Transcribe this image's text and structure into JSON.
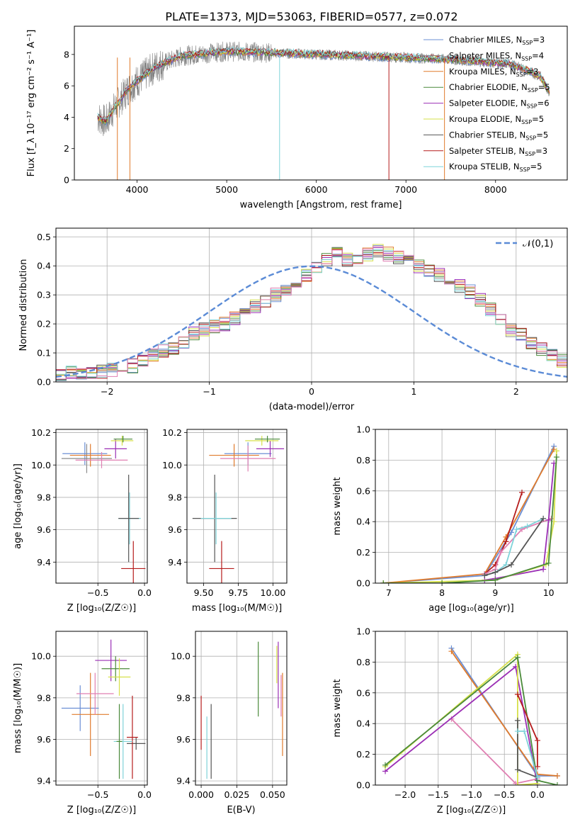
{
  "figure": {
    "title": "PLATE=1373, MJD=53063, FIBERID=0577, z=0.072"
  },
  "colors": {
    "models": [
      "#6b8fd4",
      "#8c8c8c",
      "#e07b2c",
      "#4a8a3a",
      "#9b2fb5",
      "#d6e04a",
      "#555555",
      "#b51c1c",
      "#7fd3d9"
    ],
    "extra_pink": "#e07fb2",
    "extra_green": "#6fcf3f",
    "normal_curve": "#5b8bd6"
  },
  "chart_data": [
    {
      "id": "spectrum",
      "type": "line",
      "xlabel": "wavelength [Angstrom, rest frame]",
      "ylabel": "Flux [f_λ 10⁻¹⁷ erg cm⁻² s⁻¹ A⁻¹]",
      "xlim": [
        3300,
        8800
      ],
      "ylim": [
        0,
        9.8
      ],
      "xticks": [
        4000,
        5000,
        6000,
        7000,
        8000
      ],
      "yticks": [
        0,
        2,
        4,
        6,
        8
      ],
      "grid": false,
      "legend_position": "right",
      "legend": [
        "Chabrier MILES, N_SSP=3",
        "Salpeter MILES, N_SSP=4",
        "Kroupa MILES, N_SSP=3",
        "Chabrier ELODIE, N_SSP=5",
        "Salpeter ELODIE, N_SSP=6",
        "Kroupa ELODIE, N_SSP=5",
        "Chabrier STELIB, N_SSP=5",
        "Salpeter STELIB, N_SSP=3",
        "Kroupa STELIB, N_SSP=5"
      ],
      "legend_display": [
        {
          "pre": "Chabrier MILES, N",
          "sub": "SSP",
          "post": "=3"
        },
        {
          "pre": "Salpeter MILES, N",
          "sub": "SSP",
          "post": "=4"
        },
        {
          "pre": "Kroupa MILES, N",
          "sub": "SSP",
          "post": "=3"
        },
        {
          "pre": "Chabrier ELODIE, N",
          "sub": "SSP",
          "post": "=5"
        },
        {
          "pre": "Salpeter ELODIE, N",
          "sub": "SSP",
          "post": "=6"
        },
        {
          "pre": "Kroupa ELODIE, N",
          "sub": "SSP",
          "post": "=5"
        },
        {
          "pre": "Chabrier STELIB, N",
          "sub": "SSP",
          "post": "=5"
        },
        {
          "pre": "Salpeter STELIB, N",
          "sub": "SSP",
          "post": "=3"
        },
        {
          "pre": "Kroupa STELIB, N",
          "sub": "SSP",
          "post": "=5"
        }
      ],
      "continuum": {
        "wavelength": [
          3560,
          3650,
          3750,
          3900,
          4000,
          4200,
          4500,
          5000,
          5500,
          6000,
          6500,
          7000,
          7400,
          7700,
          7900,
          8150,
          8300,
          8500,
          8600
        ],
        "flux": [
          4.0,
          3.7,
          4.6,
          5.8,
          6.3,
          7.2,
          7.9,
          8.2,
          8.1,
          8.0,
          7.9,
          7.8,
          7.7,
          7.6,
          7.5,
          7.4,
          7.1,
          6.6,
          5.6
        ]
      }
    },
    {
      "id": "residuals",
      "type": "histogram",
      "xlabel": "(data-model)/error",
      "ylabel": "Normed distribution",
      "xlim": [
        -2.5,
        2.5
      ],
      "ylim": [
        0,
        0.53
      ],
      "xticks": [
        -2,
        -1,
        0,
        1,
        2
      ],
      "yticks": [
        0.0,
        0.1,
        0.2,
        0.3,
        0.4,
        0.5
      ],
      "grid": true,
      "legend": [
        "𝒩(0,1)"
      ],
      "bins": {
        "start": -2.5,
        "width": 0.1
      },
      "reference_hist": [
        0.02,
        0.03,
        0.03,
        0.03,
        0.035,
        0.04,
        0.05,
        0.055,
        0.07,
        0.09,
        0.11,
        0.12,
        0.14,
        0.17,
        0.18,
        0.19,
        0.2,
        0.22,
        0.24,
        0.26,
        0.28,
        0.3,
        0.32,
        0.34,
        0.37,
        0.39,
        0.42,
        0.44,
        0.42,
        0.43,
        0.44,
        0.45,
        0.44,
        0.43,
        0.42,
        0.4,
        0.38,
        0.37,
        0.35,
        0.33,
        0.31,
        0.28,
        0.25,
        0.22,
        0.18,
        0.16,
        0.13,
        0.11,
        0.09,
        0.07
      ]
    },
    {
      "id": "age_vs_Z",
      "type": "errorbar",
      "xlabel": "Z [log₁₀(Z/Z☉)]",
      "ylabel": "age  [log₁₀(age/yr)]",
      "xlim": [
        -0.95,
        0.03
      ],
      "ylim": [
        9.27,
        10.22
      ],
      "xticks": [
        -0.5,
        0.0
      ],
      "yticks": [
        9.4,
        9.6,
        9.8,
        10.0,
        10.2
      ],
      "grid": true,
      "points": [
        {
          "x": -0.64,
          "y": 10.07,
          "xerr": 0.24,
          "yerr": 0.07,
          "c": 0
        },
        {
          "x": -0.62,
          "y": 10.04,
          "xerr": 0.27,
          "yerr": 0.09,
          "c": 1
        },
        {
          "x": -0.58,
          "y": 10.06,
          "xerr": 0.22,
          "yerr": 0.07,
          "c": 2
        },
        {
          "x": -0.31,
          "y": 10.1,
          "xerr": 0.12,
          "yerr": 0.06,
          "c": 4
        },
        {
          "x": -0.24,
          "y": 10.15,
          "xerr": 0.12,
          "yerr": 0.03,
          "c": 5
        },
        {
          "x": -0.23,
          "y": 10.16,
          "xerr": 0.1,
          "yerr": 0.02,
          "c": 3
        },
        {
          "x": -0.46,
          "y": 10.03,
          "xerr": 0.28,
          "yerr": 0.05,
          "c": 9
        },
        {
          "x": -0.16,
          "y": 9.67,
          "xerr": 0.12,
          "yerr": 0.16,
          "c": 8
        },
        {
          "x": -0.17,
          "y": 9.67,
          "xerr": 0.11,
          "yerr": 0.27,
          "c": 6
        },
        {
          "x": -0.12,
          "y": 9.36,
          "xerr": 0.13,
          "yerr": 0.17,
          "c": 7
        }
      ]
    },
    {
      "id": "age_vs_mass",
      "type": "errorbar",
      "xlabel": "mass [log₁₀(M/M☉)]",
      "ylabel": "",
      "xlim": [
        9.38,
        10.1
      ],
      "ylim": [
        9.27,
        10.22
      ],
      "xticks": [
        9.5,
        9.75,
        10.0
      ],
      "yticks": [
        9.4,
        9.6,
        9.8,
        10.0,
        10.2
      ],
      "grid": true,
      "points": [
        {
          "x": 9.82,
          "y": 10.07,
          "xerr": 0.17,
          "yerr": 0.07,
          "c": 0
        },
        {
          "x": 9.72,
          "y": 10.06,
          "xerr": 0.18,
          "yerr": 0.07,
          "c": 2
        },
        {
          "x": 9.82,
          "y": 10.04,
          "xerr": 0.2,
          "yerr": 0.08,
          "c": 9
        },
        {
          "x": 9.98,
          "y": 10.1,
          "xerr": 0.1,
          "yerr": 0.05,
          "c": 4
        },
        {
          "x": 9.92,
          "y": 10.15,
          "xerr": 0.12,
          "yerr": 0.03,
          "c": 5
        },
        {
          "x": 9.96,
          "y": 10.16,
          "xerr": 0.09,
          "yerr": 0.02,
          "c": 3
        },
        {
          "x": 9.58,
          "y": 9.67,
          "xerr": 0.16,
          "yerr": 0.27,
          "c": 6
        },
        {
          "x": 9.59,
          "y": 9.67,
          "xerr": 0.11,
          "yerr": 0.16,
          "c": 8
        },
        {
          "x": 9.63,
          "y": 9.36,
          "xerr": 0.09,
          "yerr": 0.17,
          "c": 7
        }
      ]
    },
    {
      "id": "weight_vs_age",
      "type": "line",
      "xlabel": "age  [log₁₀(age/yr)]",
      "ylabel": "mass weight",
      "xlim": [
        6.75,
        10.35
      ],
      "ylim": [
        0,
        1.0
      ],
      "xticks": [
        7,
        8,
        9,
        10
      ],
      "yticks": [
        0.0,
        0.2,
        0.4,
        0.6,
        0.8,
        1.0
      ],
      "grid": true,
      "series": [
        {
          "c": 0,
          "x": [
            6.9,
            8.8,
            9.3,
            10.1
          ],
          "y": [
            0.0,
            0.05,
            0.33,
            0.89
          ]
        },
        {
          "c": 2,
          "x": [
            6.9,
            8.8,
            9.2,
            10.1
          ],
          "y": [
            0.0,
            0.06,
            0.3,
            0.87
          ]
        },
        {
          "c": 7,
          "x": [
            8.8,
            9.0,
            9.2,
            9.5
          ],
          "y": [
            0.06,
            0.12,
            0.27,
            0.59
          ]
        },
        {
          "c": 9,
          "x": [
            8.8,
            9.0,
            9.1,
            9.5,
            10.05
          ],
          "y": [
            0.06,
            0.09,
            0.2,
            0.35,
            0.42
          ]
        },
        {
          "c": 8,
          "x": [
            8.8,
            9.0,
            9.2,
            9.4,
            9.6,
            9.9
          ],
          "y": [
            0.05,
            0.07,
            0.12,
            0.35,
            0.37,
            0.42
          ]
        },
        {
          "c": 4,
          "x": [
            8.8,
            9.0,
            9.9,
            10.0,
            10.1
          ],
          "y": [
            0.02,
            0.03,
            0.09,
            0.41,
            0.78
          ]
        },
        {
          "c": 5,
          "x": [
            6.9,
            8.0,
            9.0,
            9.95,
            10.1,
            10.15
          ],
          "y": [
            0.0,
            0.01,
            0.02,
            0.12,
            0.4,
            0.86
          ]
        },
        {
          "c": 3,
          "x": [
            6.9,
            8.0,
            9.0,
            10.0,
            10.15
          ],
          "y": [
            0.0,
            0.0,
            0.02,
            0.13,
            0.82
          ]
        },
        {
          "c": 6,
          "x": [
            8.8,
            9.0,
            9.3,
            9.9
          ],
          "y": [
            0.05,
            0.07,
            0.12,
            0.42
          ]
        }
      ]
    },
    {
      "id": "mass_vs_Z",
      "type": "errorbar",
      "xlabel": "Z [log₁₀(Z/Z☉)]",
      "ylabel": "mass [log₁₀(M/M☉)]",
      "xlim": [
        -0.95,
        0.03
      ],
      "ylim": [
        9.38,
        10.12
      ],
      "xticks": [
        -0.5,
        0.0
      ],
      "yticks": [
        9.4,
        9.6,
        9.8,
        10.0
      ],
      "grid": true,
      "points": [
        {
          "x": -0.69,
          "y": 9.75,
          "xerr": 0.2,
          "yerr": 0.11,
          "c": 0
        },
        {
          "x": -0.58,
          "y": 9.72,
          "xerr": 0.2,
          "yerr": 0.2,
          "c": 2
        },
        {
          "x": -0.53,
          "y": 9.82,
          "xerr": 0.2,
          "yerr": 0.1,
          "c": 9
        },
        {
          "x": -0.36,
          "y": 9.98,
          "xerr": 0.17,
          "yerr": 0.1,
          "c": 4
        },
        {
          "x": -0.31,
          "y": 9.94,
          "xerr": 0.15,
          "yerr": 0.06,
          "c": 3
        },
        {
          "x": -0.27,
          "y": 9.9,
          "xerr": 0.12,
          "yerr": 0.09,
          "c": 5
        },
        {
          "x": -0.09,
          "y": 9.58,
          "xerr": 0.1,
          "yerr": 0.03,
          "c": 6
        },
        {
          "x": -0.13,
          "y": 9.61,
          "xerr": 0.06,
          "yerr": 0.2,
          "c": 7
        },
        {
          "x": -0.23,
          "y": 9.59,
          "xerr": 0.1,
          "yerr": 0.18,
          "c": 8
        },
        {
          "x": -0.27,
          "y": 9.59,
          "xerr": 0.03,
          "yerr": 0.18,
          "c": 3
        }
      ]
    },
    {
      "id": "mass_vs_ebv",
      "type": "errorbar",
      "xlabel": "E(B-V)",
      "ylabel": "",
      "xlim": [
        -0.004,
        0.06
      ],
      "ylim": [
        9.38,
        10.12
      ],
      "xticks": [
        0.0,
        0.025,
        0.05
      ],
      "yticks": [
        9.4,
        9.6,
        9.8,
        10.0
      ],
      "grid": true,
      "points": [
        {
          "x": 0.0,
          "y": 9.68,
          "xerr": 0,
          "yerr": 0.13,
          "c": 7
        },
        {
          "x": 0.004,
          "y": 9.56,
          "xerr": 0,
          "yerr": 0.15,
          "c": 8
        },
        {
          "x": 0.007,
          "y": 9.59,
          "xerr": 0,
          "yerr": 0.18,
          "c": 6
        },
        {
          "x": 0.04,
          "y": 9.89,
          "xerr": 0,
          "yerr": 0.18,
          "c": 3
        },
        {
          "x": 0.053,
          "y": 9.96,
          "xerr": 0,
          "yerr": 0.09,
          "c": 5
        },
        {
          "x": 0.054,
          "y": 9.91,
          "xerr": 0,
          "yerr": 0.16,
          "c": 4
        },
        {
          "x": 0.057,
          "y": 9.72,
          "xerr": 0,
          "yerr": 0.2,
          "c": 2
        },
        {
          "x": 0.056,
          "y": 9.81,
          "xerr": 0,
          "yerr": 0.1,
          "c": 9
        }
      ]
    },
    {
      "id": "weight_vs_Z",
      "type": "line",
      "xlabel": "Z [log₁₀(Z/Z☉)]",
      "ylabel": "mass weight",
      "xlim": [
        -2.45,
        0.45
      ],
      "ylim": [
        0,
        1.0
      ],
      "xticks": [
        -2.0,
        -1.5,
        -1.0,
        -0.5,
        0.0
      ],
      "yticks": [
        0.0,
        0.2,
        0.4,
        0.6,
        0.8,
        1.0
      ],
      "grid": true,
      "series": [
        {
          "c": 0,
          "x": [
            -1.3,
            0.0,
            0.3
          ],
          "y": [
            0.89,
            0.06,
            0.06
          ]
        },
        {
          "c": 2,
          "x": [
            -1.3,
            0.0,
            0.3
          ],
          "y": [
            0.87,
            0.07,
            0.06
          ]
        },
        {
          "c": 9,
          "x": [
            -1.3,
            -0.33,
            0.0
          ],
          "y": [
            0.43,
            0.01,
            0.04
          ]
        },
        {
          "c": 4,
          "x": [
            -2.3,
            -0.33,
            0.0
          ],
          "y": [
            0.09,
            0.77,
            0.0
          ]
        },
        {
          "c": 5,
          "x": [
            -2.3,
            -0.3,
            -0.3,
            0.0
          ],
          "y": [
            0.12,
            0.85,
            0.0,
            0.01
          ]
        },
        {
          "c": 3,
          "x": [
            -2.3,
            -0.3,
            0.0,
            0.3
          ],
          "y": [
            0.13,
            0.83,
            0.03,
            0.0
          ]
        },
        {
          "c": 7,
          "x": [
            -0.3,
            0.0,
            0.0
          ],
          "y": [
            0.59,
            0.29,
            0.12
          ]
        },
        {
          "c": 6,
          "x": [
            -0.3,
            -0.3,
            0.0
          ],
          "y": [
            0.42,
            0.1,
            0.05
          ]
        },
        {
          "c": 8,
          "x": [
            -0.3,
            -0.2,
            0.0
          ],
          "y": [
            0.35,
            0.35,
            0.05
          ]
        }
      ]
    }
  ]
}
